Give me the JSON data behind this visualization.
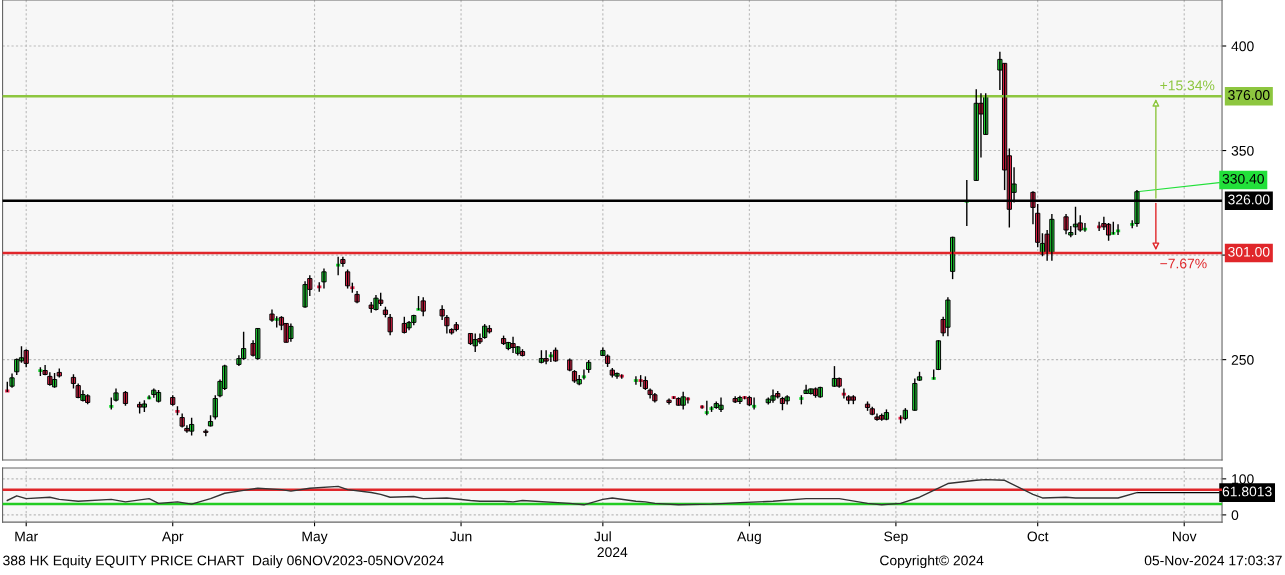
{
  "chart_data": [
    {
      "type": "candlestick",
      "x": [
        "2024-03-11",
        "2024-03-12",
        "2024-03-13",
        "2024-03-14",
        "2024-03-15",
        "2024-03-18",
        "2024-03-19",
        "2024-03-20",
        "2024-03-21",
        "2024-03-22",
        "2024-03-25",
        "2024-03-26",
        "2024-03-27",
        "2024-03-28",
        "2024-04-02",
        "2024-04-03",
        "2024-04-05",
        "2024-04-08",
        "2024-04-09",
        "2024-04-10",
        "2024-04-11",
        "2024-04-12",
        "2024-04-15",
        "2024-04-16",
        "2024-04-17",
        "2024-04-18",
        "2024-04-19",
        "2024-04-22",
        "2024-04-23",
        "2024-04-24",
        "2024-04-25",
        "2024-04-26",
        "2024-04-29",
        "2024-04-30",
        "2024-05-02",
        "2024-05-03",
        "2024-05-06",
        "2024-05-07",
        "2024-05-08",
        "2024-05-09",
        "2024-05-10",
        "2024-05-13",
        "2024-05-14",
        "2024-05-16",
        "2024-05-17",
        "2024-05-20",
        "2024-05-21",
        "2024-05-22",
        "2024-05-23",
        "2024-05-24",
        "2024-05-27",
        "2024-05-28",
        "2024-05-29",
        "2024-05-30",
        "2024-05-31",
        "2024-06-03",
        "2024-06-04",
        "2024-06-05",
        "2024-06-06",
        "2024-06-07",
        "2024-06-11",
        "2024-06-12",
        "2024-06-13",
        "2024-06-14",
        "2024-06-17",
        "2024-06-18",
        "2024-06-19",
        "2024-06-20",
        "2024-06-21",
        "2024-06-24",
        "2024-06-25",
        "2024-06-26",
        "2024-06-27",
        "2024-06-28",
        "2024-07-02",
        "2024-07-03",
        "2024-07-04",
        "2024-07-05",
        "2024-07-08",
        "2024-07-09",
        "2024-07-10",
        "2024-07-11",
        "2024-07-12",
        "2024-07-15",
        "2024-07-16",
        "2024-07-17",
        "2024-07-18",
        "2024-07-19",
        "2024-07-22",
        "2024-07-23",
        "2024-07-24",
        "2024-07-25",
        "2024-07-26",
        "2024-07-29",
        "2024-07-30",
        "2024-07-31",
        "2024-08-01",
        "2024-08-02",
        "2024-08-05",
        "2024-08-06",
        "2024-08-07",
        "2024-08-08",
        "2024-08-09",
        "2024-08-12",
        "2024-08-13",
        "2024-08-14",
        "2024-08-15",
        "2024-08-16",
        "2024-08-19",
        "2024-08-20",
        "2024-08-21",
        "2024-08-22",
        "2024-08-23",
        "2024-08-26",
        "2024-08-27",
        "2024-08-28",
        "2024-08-29",
        "2024-08-30",
        "2024-09-02",
        "2024-09-03",
        "2024-09-04",
        "2024-09-05",
        "2024-09-06",
        "2024-09-09",
        "2024-09-10",
        "2024-09-11",
        "2024-09-12",
        "2024-09-13",
        "2024-09-16",
        "2024-09-17",
        "2024-09-19",
        "2024-09-20",
        "2024-09-23",
        "2024-09-24",
        "2024-09-25",
        "2024-09-26",
        "2024-09-27",
        "2024-09-30",
        "2024-10-02",
        "2024-10-03",
        "2024-10-04",
        "2024-10-07",
        "2024-10-08",
        "2024-10-09",
        "2024-10-10",
        "2024-10-14",
        "2024-10-15",
        "2024-10-16",
        "2024-10-17",
        "2024-10-18",
        "2024-10-21",
        "2024-10-22",
        "2024-10-23",
        "2024-10-24",
        "2024-10-25",
        "2024-10-28",
        "2024-10-29",
        "2024-10-30",
        "2024-10-31",
        "2024-11-01",
        "2024-11-04",
        "2024-11-05"
      ],
      "ohlc": [
        [
          235.5,
          239.4,
          234.5,
          235.0
        ],
        [
          237.3,
          243.4,
          236.5,
          241.3
        ],
        [
          244.2,
          250.5,
          242.7,
          250.1
        ],
        [
          249.4,
          256.4,
          248.5,
          250.9
        ],
        [
          254.4,
          255.0,
          246.3,
          248.2
        ],
        [
          244.5,
          246.3,
          242.2,
          244.7
        ],
        [
          244.8,
          247.4,
          242.5,
          242.9
        ],
        [
          242.0,
          244.0,
          237.5,
          238.1
        ],
        [
          237.0,
          243.6,
          236.5,
          240.5
        ],
        [
          243.9,
          245.8,
          241.5,
          242.2
        ],
        [
          241.5,
          243.0,
          236.2,
          238.6
        ],
        [
          237.6,
          238.6,
          231.5,
          231.9
        ],
        [
          230.5,
          235.4,
          230.0,
          233.3
        ],
        [
          232.7,
          233.5,
          228.7,
          229.5
        ],
        [
          227.4,
          231.9,
          226.2,
          227.6
        ],
        [
          230.6,
          236.2,
          230.0,
          234.1
        ],
        [
          234.3,
          235.0,
          228.0,
          229.0
        ],
        [
          228.6,
          229.8,
          224.2,
          227.3
        ],
        [
          227.3,
          230.6,
          225.0,
          228.8
        ],
        [
          231.5,
          233.0,
          231.0,
          231.7
        ],
        [
          233.3,
          236.2,
          231.8,
          235.4
        ],
        [
          230.1,
          235.5,
          229.5,
          234.3
        ],
        [
          231.9,
          233.0,
          228.0,
          228.6
        ],
        [
          225.5,
          227.7,
          223.4,
          225.3
        ],
        [
          222.3,
          224.2,
          217.5,
          218.2
        ],
        [
          217.1,
          218.6,
          215.0,
          215.9
        ],
        [
          215.8,
          222.2,
          213.7,
          219.0
        ],
        [
          215.8,
          216.7,
          213.4,
          215.2
        ],
        [
          218.3,
          223.4,
          218.0,
          220.4
        ],
        [
          222.6,
          233.0,
          221.4,
          231.4
        ],
        [
          232.7,
          240.5,
          232.0,
          239.6
        ],
        [
          236.2,
          247.5,
          235.5,
          247.0
        ],
        [
          247.7,
          252.1,
          247.0,
          250.5
        ],
        [
          250.5,
          263.3,
          250.0,
          255.3
        ],
        [
          257.7,
          259.3,
          251.5,
          252.1
        ],
        [
          250.5,
          265.0,
          250.0,
          264.9
        ],
        [
          271.8,
          274.0,
          268.1,
          268.9
        ],
        [
          269.0,
          270.8,
          265.4,
          269.2
        ],
        [
          270.2,
          270.8,
          264.1,
          266.5
        ],
        [
          267.3,
          267.5,
          258.2,
          258.3
        ],
        [
          260.1,
          267.3,
          258.5,
          265.9
        ],
        [
          275.2,
          287.5,
          274.8,
          285.9
        ],
        [
          288.8,
          290.4,
          280.4,
          283.6
        ],
        [
          285.0,
          287.0,
          282.5,
          284.8
        ],
        [
          287.2,
          293.6,
          284.0,
          292.0
        ],
        [
          295.0,
          299.2,
          290.4,
          295.2
        ],
        [
          297.9,
          299.2,
          294.4,
          296.0
        ],
        [
          292.0,
          293.1,
          284.0,
          285.3
        ],
        [
          284.6,
          286.8,
          282.0,
          284.4
        ],
        [
          281.2,
          282.8,
          277.0,
          277.6
        ],
        [
          276.1,
          277.6,
          272.4,
          274.5
        ],
        [
          274.0,
          280.9,
          273.5,
          279.4
        ],
        [
          278.5,
          282.0,
          275.7,
          276.9
        ],
        [
          273.7,
          275.3,
          270.2,
          271.6
        ],
        [
          270.2,
          271.8,
          261.7,
          263.3
        ],
        [
          267.3,
          270.5,
          262.5,
          263.0
        ],
        [
          265.2,
          268.5,
          264.0,
          267.8
        ],
        [
          267.8,
          271.5,
          266.5,
          271.1
        ],
        [
          273.8,
          280.4,
          273.7,
          274.0
        ],
        [
          278.1,
          279.8,
          270.8,
          273.2
        ],
        [
          274.0,
          276.0,
          269.0,
          270.9
        ],
        [
          270.2,
          271.3,
          262.5,
          266.2
        ],
        [
          264.4,
          265.0,
          262.0,
          262.8
        ],
        [
          266.7,
          268.0,
          263.5,
          264.4
        ],
        [
          262.5,
          262.6,
          257.0,
          257.7
        ],
        [
          256.6,
          262.5,
          253.7,
          259.6
        ],
        [
          260.1,
          262.5,
          257.5,
          258.5
        ],
        [
          260.6,
          267.0,
          260.0,
          266.0
        ],
        [
          264.9,
          266.5,
          262.5,
          263.3
        ],
        [
          260.1,
          261.5,
          257.0,
          257.7
        ],
        [
          255.3,
          258.5,
          254.5,
          258.2
        ],
        [
          257.7,
          260.9,
          253.2,
          255.8
        ],
        [
          253.0,
          256.5,
          252.0,
          256.1
        ],
        [
          253.9,
          255.0,
          251.5,
          252.0
        ],
        [
          248.7,
          254.5,
          248.2,
          250.5
        ],
        [
          250.5,
          254.5,
          247.8,
          249.3
        ],
        [
          251.6,
          253.7,
          248.9,
          251.8
        ],
        [
          254.5,
          255.8,
          249.0,
          249.4
        ],
        [
          249.8,
          250.5,
          244.5,
          245.0
        ],
        [
          244.3,
          245.0,
          238.9,
          239.8
        ],
        [
          238.4,
          242.6,
          237.8,
          240.5
        ],
        [
          241.6,
          245.3,
          240.5,
          241.8
        ],
        [
          245.3,
          249.8,
          243.7,
          248.7
        ],
        [
          252.0,
          255.8,
          251.7,
          254.4
        ],
        [
          251.7,
          252.5,
          246.5,
          248.2
        ],
        [
          245.0,
          246.0,
          241.5,
          242.6
        ],
        [
          242.1,
          243.9,
          240.8,
          243.4
        ],
        [
          242.3,
          243.0,
          240.8,
          242.1
        ],
        [
          239.9,
          242.1,
          238.0,
          240.0
        ],
        [
          240.2,
          242.6,
          237.0,
          240.0
        ],
        [
          240.0,
          242.0,
          235.5,
          236.2
        ],
        [
          235.4,
          236.2,
          231.4,
          233.3
        ],
        [
          233.2,
          234.0,
          229.5,
          230.3
        ],
        [
          230.6,
          231.4,
          228.6,
          229.5
        ],
        [
          232.1,
          232.5,
          231.2,
          231.9
        ],
        [
          231.4,
          232.0,
          228.0,
          228.2
        ],
        [
          228.2,
          234.6,
          226.2,
          232.2
        ],
        [
          231.4,
          232.0,
          229.0,
          231.2
        ],
        [
          227.6,
          228.2,
          226.5,
          227.4
        ],
        [
          224.5,
          230.3,
          223.4,
          224.7
        ],
        [
          226.4,
          227.7,
          225.0,
          226.6
        ],
        [
          227.1,
          230.0,
          226.5,
          229.0
        ],
        [
          226.2,
          231.9,
          225.0,
          228.2
        ],
        [
          231.4,
          232.5,
          229.3,
          229.8
        ],
        [
          230.0,
          232.7,
          228.8,
          231.9
        ],
        [
          232.1,
          232.5,
          231.0,
          231.9
        ],
        [
          231.9,
          232.7,
          227.8,
          228.4
        ],
        [
          227.5,
          231.9,
          226.2,
          227.7
        ],
        [
          229.4,
          231.9,
          228.6,
          231.1
        ],
        [
          230.6,
          235.7,
          229.4,
          232.7
        ],
        [
          233.8,
          235.0,
          231.4,
          232.2
        ],
        [
          231.4,
          232.2,
          225.8,
          229.0
        ],
        [
          230.3,
          233.0,
          228.6,
          232.2
        ],
        [
          231.2,
          233.0,
          228.6,
          231.4
        ],
        [
          233.8,
          238.0,
          233.8,
          235.4
        ],
        [
          233.8,
          236.2,
          233.3,
          236.0
        ],
        [
          236.0,
          236.7,
          231.8,
          232.9
        ],
        [
          232.2,
          237.0,
          231.8,
          236.7
        ],
        [
          237.3,
          246.9,
          237.0,
          241.0
        ],
        [
          241.0,
          241.5,
          236.5,
          237.3
        ],
        [
          233.7,
          236.2,
          231.4,
          233.5
        ],
        [
          232.2,
          233.0,
          228.7,
          230.6
        ],
        [
          232.2,
          233.0,
          228.7,
          230.6
        ],
        [
          228.7,
          230.0,
          225.5,
          227.1
        ],
        [
          226.5,
          227.5,
          223.4,
          223.9
        ],
        [
          222.6,
          224.2,
          220.8,
          221.4
        ],
        [
          223.3,
          224.2,
          220.8,
          221.5
        ],
        [
          221.5,
          226.2,
          221.0,
          224.7
        ],
        [
          222.3,
          223.4,
          219.5,
          222.0
        ],
        [
          221.9,
          226.8,
          221.0,
          225.8
        ],
        [
          225.8,
          241.0,
          225.5,
          238.6
        ],
        [
          240.2,
          244.2,
          239.8,
          241.8
        ],
        [
          240.8,
          245.3,
          240.5,
          241.0
        ],
        [
          245.3,
          259.3,
          245.0,
          259.0
        ],
        [
          269.2,
          270.5,
          261.2,
          262.8
        ],
        [
          265.5,
          279.8,
          261.2,
          278.5
        ],
        [
          292.2,
          308.8,
          288.5,
          308.5
        ],
        [
          325.5,
          335.9,
          313.9,
          325.7
        ],
        [
          335.7,
          379.3,
          335.7,
          372.6
        ],
        [
          372.6,
          377.4,
          346.7,
          367.5
        ],
        [
          357.7,
          377.4,
          357.5,
          376.1
        ],
        [
          388.5,
          397.3,
          378.9,
          393.6
        ],
        [
          391.7,
          391.8,
          331.1,
          340.7
        ],
        [
          347.5,
          351.0,
          313.2,
          321.9
        ],
        [
          330.0,
          342.0,
          325.2,
          334.0
        ],
        [
          330.0,
          330.5,
          314.8,
          322.8
        ],
        [
          320.0,
          324.4,
          303.7,
          306.1
        ],
        [
          300.5,
          310.4,
          299.5,
          305.6
        ],
        [
          310.0,
          312.0,
          297.3,
          300.8
        ],
        [
          300.8,
          319.6,
          297.3,
          317.1
        ],
        [
          318.3,
          319.6,
          310.0,
          312.0
        ],
        [
          309.6,
          313.9,
          308.5,
          310.8
        ],
        [
          313.5,
          323.1,
          309.6,
          314.8
        ],
        [
          315.4,
          319.1,
          311.2,
          312.0
        ],
        [
          312.3,
          315.4,
          311.2,
          312.4
        ],
        [
          313.6,
          316.0,
          311.5,
          313.5
        ],
        [
          315.1,
          318.3,
          312.0,
          313.5
        ],
        [
          314.7,
          315.4,
          306.8,
          309.6
        ],
        [
          310.3,
          315.9,
          309.9,
          310.4
        ],
        [
          311.5,
          314.8,
          309.6,
          311.6
        ],
        [
          314.6,
          316.7,
          312.8,
          314.7
        ],
        [
          315.1,
          331.1,
          313.5,
          330.3
        ]
      ],
      "colors": [
        "#e8244a",
        "#22e03a",
        "#22e03a",
        "#22e03a",
        "#e8244a",
        "#22e03a",
        "#e8244a",
        "#e8244a",
        "#22e03a",
        "#e8244a",
        "#e8244a",
        "#e8244a",
        "#22e03a",
        "#e8244a",
        "#22e03a",
        "#22e03a",
        "#e8244a",
        "#e8244a",
        "#22e03a",
        "#22e03a",
        "#22e03a",
        "#22e03a",
        "#e8244a",
        "#e8244a",
        "#e8244a",
        "#e8244a",
        "#22e03a",
        "#e8244a",
        "#22e03a",
        "#22e03a",
        "#22e03a",
        "#22e03a",
        "#22e03a",
        "#22e03a",
        "#e8244a",
        "#22e03a",
        "#e8244a",
        "#22e03a",
        "#e8244a",
        "#e8244a",
        "#22e03a",
        "#22e03a",
        "#e8244a",
        "#e8244a",
        "#22e03a",
        "#22e03a",
        "#e8244a",
        "#e8244a",
        "#e8244a",
        "#e8244a",
        "#e8244a",
        "#22e03a",
        "#e8244a",
        "#e8244a",
        "#e8244a",
        "#e8244a",
        "#22e03a",
        "#22e03a",
        "#22e03a",
        "#e8244a",
        "#e8244a",
        "#e8244a",
        "#e8244a",
        "#e8244a",
        "#e8244a",
        "#22e03a",
        "#e8244a",
        "#22e03a",
        "#e8244a",
        "#e8244a",
        "#22e03a",
        "#e8244a",
        "#22e03a",
        "#e8244a",
        "#22e03a",
        "#e8244a",
        "#22e03a",
        "#e8244a",
        "#e8244a",
        "#e8244a",
        "#22e03a",
        "#22e03a",
        "#22e03a",
        "#22e03a",
        "#e8244a",
        "#e8244a",
        "#22e03a",
        "#e8244a",
        "#22e03a",
        "#e8244a",
        "#e8244a",
        "#e8244a",
        "#e8244a",
        "#e8244a",
        "#e8244a",
        "#e8244a",
        "#22e03a",
        "#e8244a",
        "#e8244a",
        "#22e03a",
        "#22e03a",
        "#22e03a",
        "#22e03a",
        "#e8244a",
        "#22e03a",
        "#e8244a",
        "#e8244a",
        "#22e03a",
        "#22e03a",
        "#22e03a",
        "#e8244a",
        "#e8244a",
        "#22e03a",
        "#22e03a",
        "#22e03a",
        "#22e03a",
        "#e8244a",
        "#22e03a",
        "#22e03a",
        "#e8244a",
        "#e8244a",
        "#e8244a",
        "#e8244a",
        "#e8244a",
        "#e8244a",
        "#e8244a",
        "#e8244a",
        "#22e03a",
        "#e8244a",
        "#22e03a",
        "#22e03a",
        "#22e03a",
        "#22e03a",
        "#22e03a",
        "#e8244a",
        "#22e03a",
        "#22e03a",
        "#22e03a",
        "#22e03a",
        "#e8244a",
        "#22e03a",
        "#22e03a",
        "#e8244a",
        "#e8244a",
        "#22e03a",
        "#e8244a",
        "#e8244a",
        "#22e03a",
        "#e8244a",
        "#22e03a",
        "#e8244a",
        "#22e03a",
        "#22e03a",
        "#e8244a",
        "#22e03a",
        "#e8244a",
        "#e8244a",
        "#e8244a",
        "#22e03a",
        "#22e03a",
        "#22e03a",
        "#22e03a"
      ],
      "xlim": [
        "2024-03-10",
        "2024-11-23"
      ],
      "xticks": [
        {
          "value": "2024-03-15",
          "label": null
        },
        {
          "value": "2024-04-15",
          "label": null
        },
        {
          "value": "2024-05-15",
          "label": null
        },
        {
          "value": "2024-06-15",
          "label": null
        },
        {
          "value": "2024-07-15",
          "label": null
        },
        {
          "value": "2024-08-15",
          "label": null
        },
        {
          "value": "2024-09-15",
          "label": null
        },
        {
          "value": "2024-10-15",
          "label": null
        },
        {
          "value": "2024-11-15",
          "label": null
        }
      ],
      "ylim": [
        202,
        422
      ],
      "yticks": [
        250,
        {
          "value": 300,
          "label": null
        },
        350,
        400
      ],
      "tick_labels": "y",
      "grid": true,
      "ref_lines": [
        {
          "axis": "y",
          "value": 376,
          "label": "376.00",
          "color": "#8dc63f"
        },
        {
          "axis": "y",
          "value": 326,
          "label": "326.00",
          "color": "#000000"
        },
        {
          "axis": "y",
          "value": 301,
          "label": "301.00",
          "color": "#e0262a"
        }
      ],
      "annotations": [
        {
          "text": "+15.34%",
          "x": "2024-11-09",
          "y": 376
        },
        {
          "text": "−7.67%",
          "x": "2024-11-09",
          "y": 301
        },
        {
          "text": "330.40",
          "x": "2024-11-05",
          "y": 330.3
        }
      ]
    },
    {
      "type": "line",
      "x": [
        "2024-03-11",
        "2024-03-13",
        "2024-03-15",
        "2024-03-20",
        "2024-03-22",
        "2024-03-26",
        "2024-04-02",
        "2024-04-05",
        "2024-04-10",
        "2024-04-12",
        "2024-04-16",
        "2024-04-19",
        "2024-04-23",
        "2024-04-26",
        "2024-04-30",
        "2024-05-03",
        "2024-05-08",
        "2024-05-10",
        "2024-05-14",
        "2024-05-20",
        "2024-05-22",
        "2024-05-27",
        "2024-05-29",
        "2024-05-31",
        "2024-06-05",
        "2024-06-07",
        "2024-06-12",
        "2024-06-17",
        "2024-06-19",
        "2024-06-24",
        "2024-06-26",
        "2024-06-28",
        "2024-07-08",
        "2024-07-11",
        "2024-07-15",
        "2024-07-17",
        "2024-07-22",
        "2024-07-24",
        "2024-07-26",
        "2024-07-31",
        "2024-08-07",
        "2024-08-13",
        "2024-08-20",
        "2024-08-27",
        "2024-09-03",
        "2024-09-09",
        "2024-09-12",
        "2024-09-16",
        "2024-09-20",
        "2024-09-24",
        "2024-09-26",
        "2024-10-02",
        "2024-10-04",
        "2024-10-08",
        "2024-10-14",
        "2024-10-16",
        "2024-10-21",
        "2024-10-23",
        "2024-10-30",
        "2024-11-01",
        "2024-11-05"
      ],
      "series": [
        {
          "color": "#333333",
          "values": [
            40,
            53,
            45,
            49,
            43,
            38,
            43,
            36,
            45,
            32,
            36,
            30,
            45,
            60,
            68,
            74,
            70,
            66,
            74,
            79,
            70,
            62,
            57,
            49,
            51,
            45,
            47,
            40,
            38,
            38,
            36,
            40,
            32,
            28,
            43,
            47,
            38,
            36,
            32,
            28,
            30,
            34,
            38,
            45,
            45,
            32,
            28,
            32,
            49,
            74,
            87,
            96,
            98,
            96,
            57,
            47,
            49,
            47,
            47,
            47,
            61.8013
          ]
        }
      ],
      "xlim": [
        "2024-03-10",
        "2024-11-23"
      ],
      "xticks": [
        {
          "value": "2024-03-15",
          "label": "Mar"
        },
        {
          "value": "2024-04-15",
          "label": "Apr"
        },
        {
          "value": "2024-05-15",
          "label": "May"
        },
        {
          "value": "2024-06-15",
          "label": "Jun"
        },
        {
          "value": "2024-07-15",
          "label": "Jul"
        },
        {
          "value": "2024-08-15",
          "label": "Aug"
        },
        {
          "value": "2024-09-15",
          "label": "Sep"
        },
        {
          "value": "2024-10-15",
          "label": "Oct"
        },
        {
          "value": "2024-11-15",
          "label": "Nov"
        }
      ],
      "xlabel": "2024",
      "ylim": [
        -20,
        130
      ],
      "yticks": [
        0,
        100
      ],
      "grid": true,
      "ref_lines": [
        {
          "axis": "y",
          "value": 70,
          "color": "#e0262a"
        },
        {
          "axis": "y",
          "value": 30,
          "color": "#22cc22"
        }
      ],
      "annotations": [
        {
          "text": "61.8013",
          "x": "2024-11-05",
          "y": 61.8013
        },
        "388 HK Equity EQUITY PRICE CHART  Daily 06NOV2023-05NOV2024",
        "Copyright© 2024",
        "05-Nov-2024 17:03:37"
      ]
    }
  ]
}
